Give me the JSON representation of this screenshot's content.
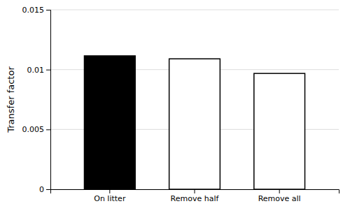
{
  "chart_data": {
    "type": "bar",
    "categories": [
      "On litter",
      "Remove half",
      "Remove all"
    ],
    "values": [
      0.01115,
      0.0109,
      0.00968
    ],
    "colors": [
      "#000000",
      "white",
      "white"
    ],
    "ylabel": "Transfer factor",
    "ylim": [
      0,
      0.015
    ],
    "yticks": [
      0,
      0.005,
      0.01,
      0.015
    ],
    "grid": true
  }
}
